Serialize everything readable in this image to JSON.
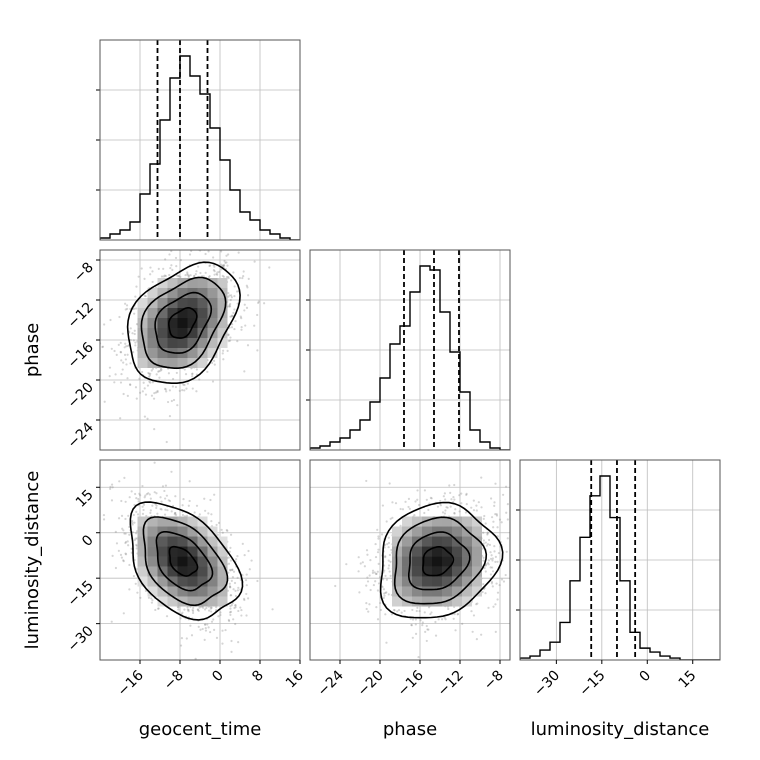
{
  "chart_data": {
    "type": "corner",
    "parameters": [
      "geocent_time",
      "phase",
      "luminosity_distance"
    ],
    "ranges": {
      "geocent_time": [
        -24,
        16
      ],
      "phase": [
        -27,
        -7
      ],
      "luminosity_distance": [
        -42,
        24
      ]
    },
    "ticks": {
      "geocent_time": [
        -16,
        -8,
        0,
        8,
        16
      ],
      "phase": [
        -24,
        -20,
        -16,
        -12,
        -8
      ],
      "luminosity_distance": [
        -30,
        -15,
        0,
        15
      ]
    },
    "tick_labels": {
      "geocent_time": [
        "−16",
        "−8",
        "0",
        "8",
        "16"
      ],
      "phase": [
        "−24",
        "−20",
        "−16",
        "−12",
        "−8"
      ],
      "luminosity_distance": [
        "−30",
        "−15",
        "0",
        "15"
      ]
    },
    "grid": true,
    "histograms": {
      "geocent_time": {
        "bin_start": -24,
        "bin_width": 2,
        "counts": [
          1,
          3,
          5,
          9,
          23,
          38,
          60,
          81,
          92,
          82,
          73,
          56,
          40,
          25,
          14,
          10,
          5,
          3,
          1,
          0
        ],
        "quantiles": [
          -12.5,
          -8,
          -2.5
        ]
      },
      "phase": {
        "bin_start": -27,
        "bin_width": 1,
        "counts": [
          1,
          2,
          4,
          6,
          10,
          15,
          24,
          36,
          53,
          62,
          79,
          92,
          90,
          69,
          49,
          29,
          10,
          4,
          1,
          0
        ],
        "quantiles": [
          -17.6,
          -14.6,
          -12.1
        ]
      },
      "luminosity_distance": {
        "bin_start": -42,
        "bin_width": 3.3,
        "counts": [
          1,
          2,
          5,
          9,
          19,
          40,
          62,
          83,
          93,
          72,
          40,
          14,
          6,
          4,
          2,
          1,
          0,
          0,
          0,
          0
        ],
        "quantiles": [
          -18.5,
          -10,
          -4
        ]
      }
    },
    "joint": [
      {
        "x": "geocent_time",
        "y": "phase",
        "mean": [
          -7.5,
          -14.3
        ],
        "sd": [
          5.5,
          3.0
        ],
        "rho": 0.35
      },
      {
        "x": "geocent_time",
        "y": "luminosity_distance",
        "mean": [
          -7.5,
          -9.5
        ],
        "sd": [
          5.5,
          9.5
        ],
        "rho": -0.4
      },
      {
        "x": "phase",
        "y": "luminosity_distance",
        "mean": [
          -14.3,
          -9.5
        ],
        "sd": [
          3.0,
          9.5
        ],
        "rho": 0.15
      }
    ]
  }
}
